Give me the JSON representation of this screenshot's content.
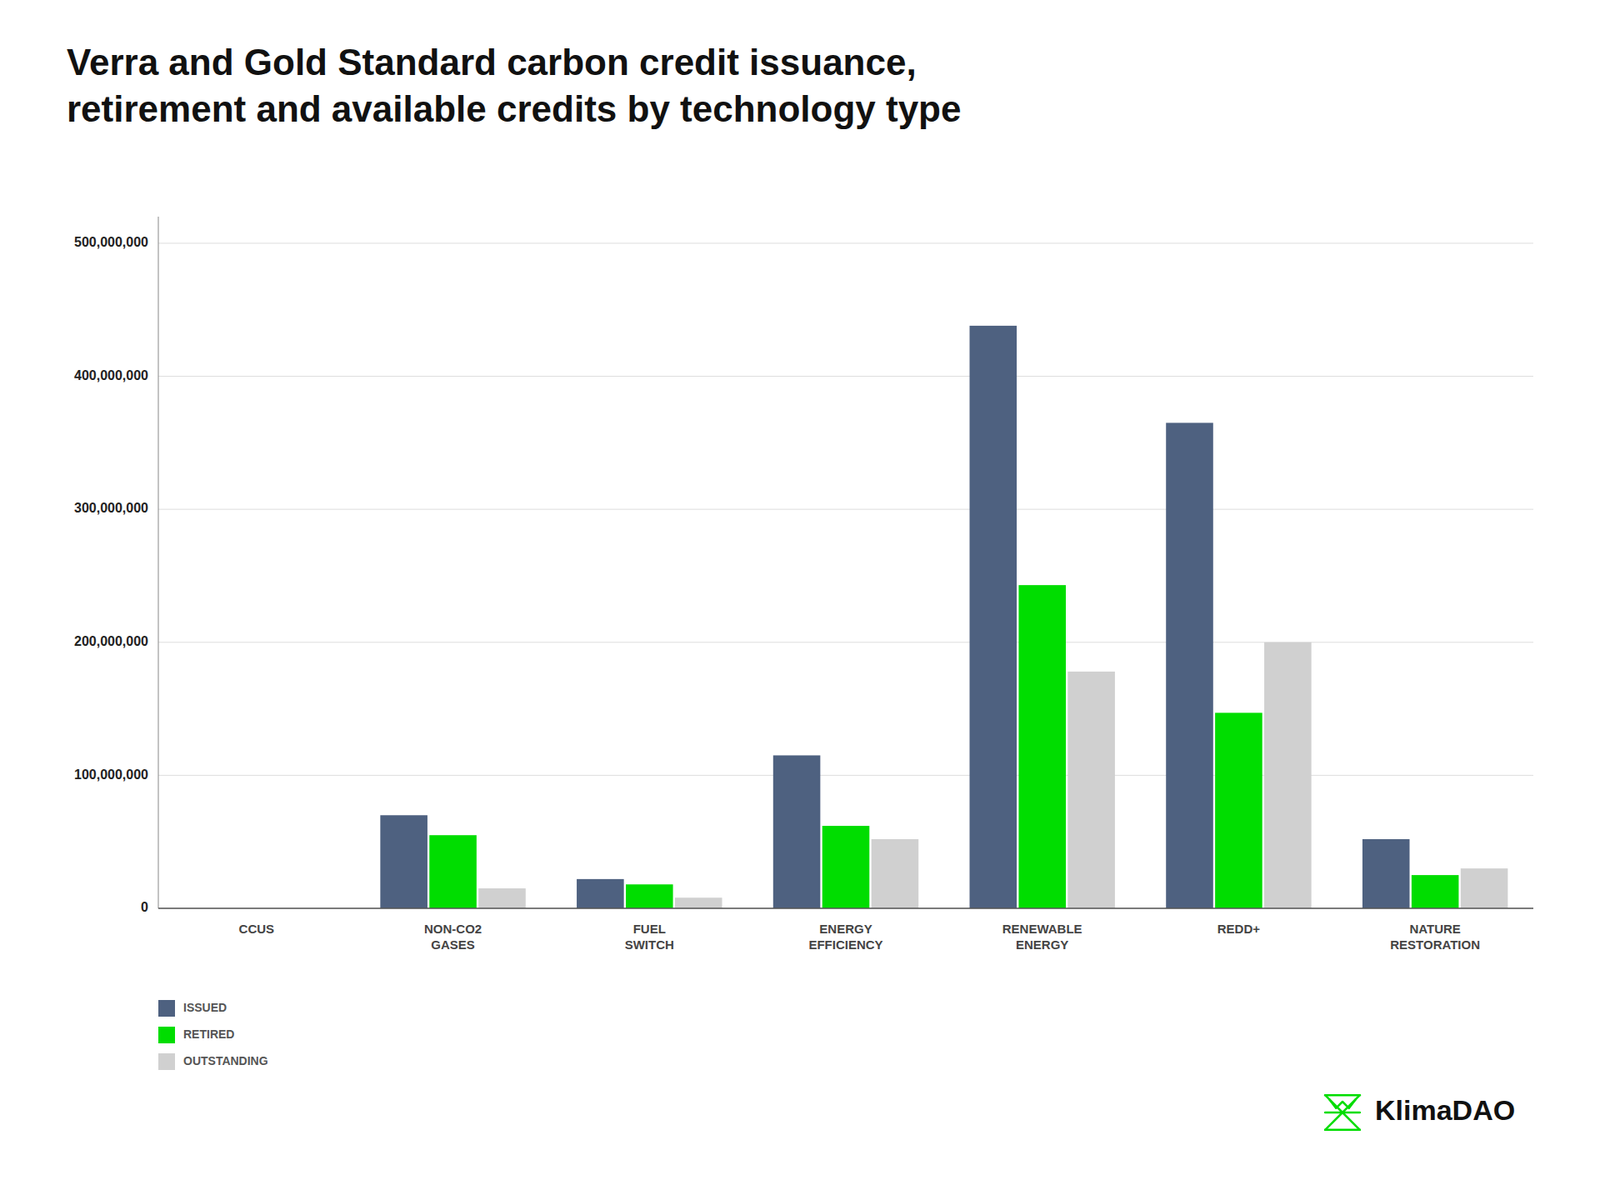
{
  "chart_data": {
    "type": "bar",
    "title": "Verra and Gold Standard carbon credit issuance,\nretirement and available credits by technology type",
    "categories": [
      "CCUS",
      "NON-CO2\nGASES",
      "FUEL\nSWITCH",
      "ENERGY\nEFFICIENCY",
      "RENEWABLE\nENERGY",
      "REDD+",
      "NATURE\nRESTORATION"
    ],
    "series": [
      {
        "name": "ISSUED",
        "color": "#4e6180",
        "values": [
          0,
          70000000,
          22000000,
          115000000,
          438000000,
          365000000,
          52000000
        ]
      },
      {
        "name": "RETIRED",
        "color": "#00dd00",
        "values": [
          0,
          55000000,
          18000000,
          62000000,
          243000000,
          147000000,
          25000000
        ]
      },
      {
        "name": "OUTSTANDING",
        "color": "#d0d0d0",
        "values": [
          0,
          15000000,
          8000000,
          52000000,
          178000000,
          200000000,
          30000000
        ]
      }
    ],
    "ylim": [
      0,
      520000000
    ],
    "yticks": [
      0,
      {
        "value": 100000000,
        "label": "100,000,000"
      },
      {
        "value": 200000000,
        "label": "200,000,000"
      },
      {
        "value": 300000000,
        "label": "300,000,000"
      },
      {
        "value": 400000000,
        "label": "400,000,000"
      },
      {
        "value": 500000000,
        "label": "500,000,000"
      }
    ],
    "grid": true,
    "legend": "bottom",
    "annotations": [
      "KlimaDAO"
    ]
  }
}
